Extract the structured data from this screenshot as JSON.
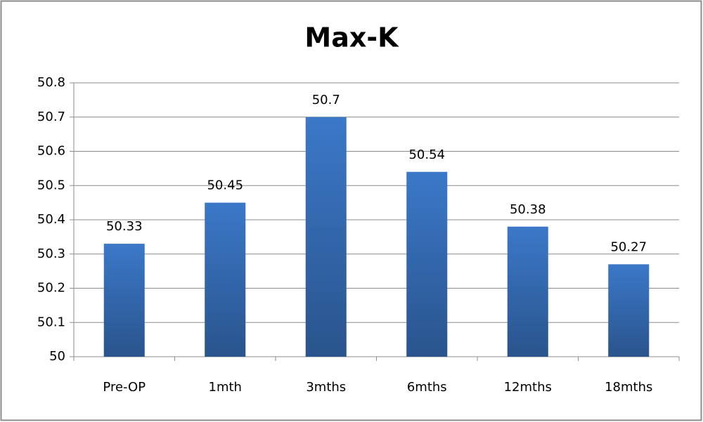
{
  "chart_data": {
    "type": "bar",
    "title": "Max-K",
    "categories": [
      "Pre-OP",
      "1mth",
      "3mths",
      "6mths",
      "12mths",
      "18mths"
    ],
    "values": [
      50.33,
      50.45,
      50.7,
      50.54,
      50.38,
      50.27
    ],
    "color": "#3b78c8",
    "ylim": [
      50,
      50.8
    ],
    "yticks": [
      50,
      50.1,
      50.2,
      50.3,
      50.4,
      50.5,
      50.6,
      50.7,
      50.8
    ],
    "grid": true
  }
}
